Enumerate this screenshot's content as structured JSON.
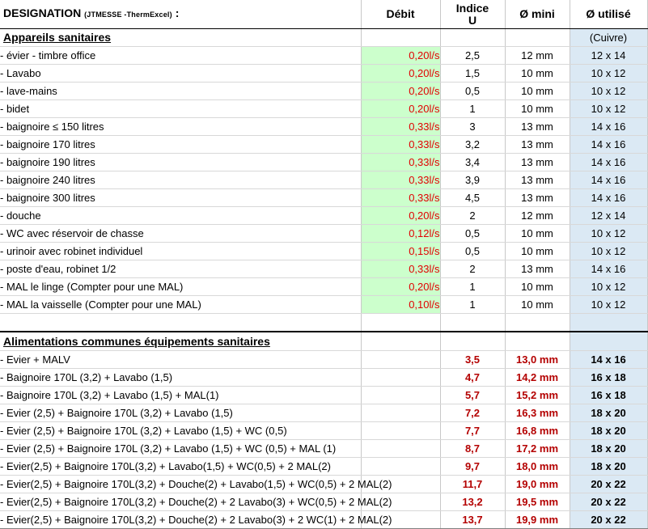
{
  "header": {
    "designation": "DESIGNATION",
    "designation_small": "(JTMESSE -ThermExcel)",
    "designation_colon": ":",
    "debit": "Débit",
    "indice_line1": "Indice",
    "indice_line2": "U",
    "diam_mini": "Ø mini",
    "diam_used": "Ø utilisé"
  },
  "section1": {
    "title": "Appareils sanitaires",
    "used_note": "(Cuivre)",
    "rows": [
      {
        "name": "- évier - timbre office",
        "debit": "0,20l/s",
        "indice": "2,5",
        "mini": "12 mm",
        "used": "12 x 14"
      },
      {
        "name": "- Lavabo",
        "debit": "0,20l/s",
        "indice": "1,5",
        "mini": "10 mm",
        "used": "10 x 12"
      },
      {
        "name": "- lave-mains",
        "debit": "0,20l/s",
        "indice": "0,5",
        "mini": "10 mm",
        "used": "10 x 12"
      },
      {
        "name": "- bidet",
        "debit": "0,20l/s",
        "indice": "1",
        "mini": "10 mm",
        "used": "10 x 12"
      },
      {
        "name": "- baignoire ≤ 150 litres",
        "debit": "0,33l/s",
        "indice": "3",
        "mini": "13 mm",
        "used": "14 x 16"
      },
      {
        "name": "- baignoire 170 litres",
        "debit": "0,33l/s",
        "indice": "3,2",
        "mini": "13 mm",
        "used": "14 x 16"
      },
      {
        "name": "- baignoire 190 litres",
        "debit": "0,33l/s",
        "indice": "3,4",
        "mini": "13 mm",
        "used": "14 x 16",
        "indent": true
      },
      {
        "name": "- baignoire 240 litres",
        "debit": "0,33l/s",
        "indice": "3,9",
        "mini": "13 mm",
        "used": "14 x 16",
        "indent": true
      },
      {
        "name": "- baignoire 300 litres",
        "debit": "0,33l/s",
        "indice": "4,5",
        "mini": "13 mm",
        "used": "14 x 16",
        "indent": true
      },
      {
        "name": "- douche",
        "debit": "0,20l/s",
        "indice": "2",
        "mini": "12 mm",
        "used": "12 x 14"
      },
      {
        "name": "- WC avec réservoir de chasse",
        "debit": "0,12l/s",
        "indice": "0,5",
        "mini": "10 mm",
        "used": "10 x 12"
      },
      {
        "name": "- urinoir avec robinet individuel",
        "debit": "0,15l/s",
        "indice": "0,5",
        "mini": "10 mm",
        "used": "10 x 12"
      },
      {
        "name": "- poste d'eau, robinet 1/2",
        "debit": "0,33l/s",
        "indice": "2",
        "mini": "13 mm",
        "used": "14 x 16"
      },
      {
        "name": "- MAL le linge (Compter pour une MAL)",
        "debit": "0,20l/s",
        "indice": "1",
        "mini": "10 mm",
        "used": "10 x 12"
      },
      {
        "name": "- MAL la vaisselle (Compter pour une MAL)",
        "debit": "0,10l/s",
        "indice": "1",
        "mini": "10 mm",
        "used": "10 x 12"
      }
    ]
  },
  "section2": {
    "title": "Alimentations communes équipements sanitaires",
    "rows": [
      {
        "name": "- Evier + MALV",
        "indice": "3,5",
        "mini": "13,0 mm",
        "used": "14 x 16"
      },
      {
        "name": "- Baignoire 170L (3,2) + Lavabo (1,5)",
        "indice": "4,7",
        "mini": "14,2 mm",
        "used": "16 x 18"
      },
      {
        "name": "- Baignoire 170L (3,2) + Lavabo (1,5) + MAL(1)",
        "indice": "5,7",
        "mini": "15,2 mm",
        "used": "16 x 18"
      },
      {
        "name": "- Evier (2,5) + Baignoire 170L (3,2) + Lavabo (1,5)",
        "indice": "7,2",
        "mini": "16,3 mm",
        "used": "18 x 20"
      },
      {
        "name": "- Evier (2,5) + Baignoire 170L (3,2) + Lavabo (1,5) + WC (0,5)",
        "indice": "7,7",
        "mini": "16,8 mm",
        "used": "18 x 20"
      },
      {
        "name": "- Evier (2,5) + Baignoire 170L (3,2) + Lavabo (1,5) + WC (0,5) + MAL (1)",
        "indice": "8,7",
        "mini": "17,2 mm",
        "used": "18 x 20"
      },
      {
        "name": "- Evier(2,5) + Baignoire 170L(3,2) + Lavabo(1,5) + WC(0,5) + 2 MAL(2)",
        "indice": "9,7",
        "mini": "18,0 mm",
        "used": "18 x 20"
      },
      {
        "name": "- Evier(2,5) + Baignoire 170L(3,2) + Douche(2) + Lavabo(1,5) + WC(0,5) + 2 MAL(2)",
        "indice": "11,7",
        "mini": "19,0 mm",
        "used": "20 x 22"
      },
      {
        "name": "- Evier(2,5) + Baignoire 170L(3,2) + Douche(2) + 2 Lavabo(3) + WC(0,5) + 2 MAL(2)",
        "indice": "13,2",
        "mini": "19,5 mm",
        "used": "20 x 22"
      },
      {
        "name": "- Evier(2,5) + Baignoire 170L(3,2) + Douche(2) + 2 Lavabo(3) + 2 WC(1) + 2 MAL(2)",
        "indice": "13,7",
        "mini": "19,9 mm",
        "used": "20 x 22"
      }
    ]
  },
  "colors": {
    "debit_bg": "#ccffcc",
    "debit_text": "#e10000",
    "used_bg": "#dbe9f4",
    "calc_text": "#b40000"
  }
}
